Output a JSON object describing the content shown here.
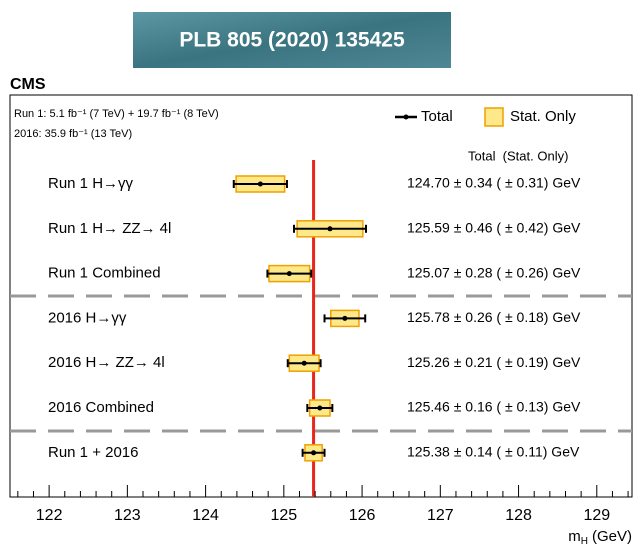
{
  "chart_data": {
    "type": "errorbar",
    "banner": "PLB 805 (2020) 135425",
    "title": "CMS",
    "lumi": [
      "Run 1: 5.1 fb⁻¹ (7 TeV) + 19.7 fb⁻¹ (8 TeV)",
      "2016: 35.9 fb⁻¹ (13 TeV)"
    ],
    "legend": {
      "total": "Total",
      "stat": "Stat. Only"
    },
    "column_header": "Total  (Stat. Only)",
    "categories": [
      "Run 1 H→γγ",
      "Run 1 H→ ZZ→ 4l",
      "Run 1 Combined",
      "2016 H→γγ",
      "2016 H→ ZZ→ 4l",
      "2016 Combined",
      "Run 1 + 2016"
    ],
    "values": [
      124.7,
      125.59,
      125.07,
      125.78,
      125.26,
      125.46,
      125.38
    ],
    "total_err": [
      0.34,
      0.46,
      0.28,
      0.26,
      0.21,
      0.16,
      0.14
    ],
    "stat_err": [
      0.31,
      0.42,
      0.26,
      0.18,
      0.19,
      0.13,
      0.11
    ],
    "value_labels": [
      "124.70 ± 0.34 ( ± 0.31) GeV",
      "125.59 ± 0.46 ( ± 0.42) GeV",
      "125.07 ± 0.28 ( ± 0.26) GeV",
      "125.78 ± 0.26 ( ± 0.18) GeV",
      "125.26 ± 0.21 ( ± 0.19) GeV",
      "125.46 ± 0.16 ( ± 0.13) GeV",
      "125.38 ± 0.14 ( ± 0.11) GeV"
    ],
    "x_label": {
      "symbol": "m",
      "subscript": "H",
      "unit": "(GeV)"
    },
    "xlim": [
      121.5,
      129.45
    ],
    "xticks": [
      122,
      123,
      124,
      125,
      126,
      127,
      128,
      129
    ],
    "stat_color": "#fde98a",
    "stat_edge": "#f0a000",
    "combined_color": "#e8261c",
    "band_color": "#c8c8c8"
  }
}
